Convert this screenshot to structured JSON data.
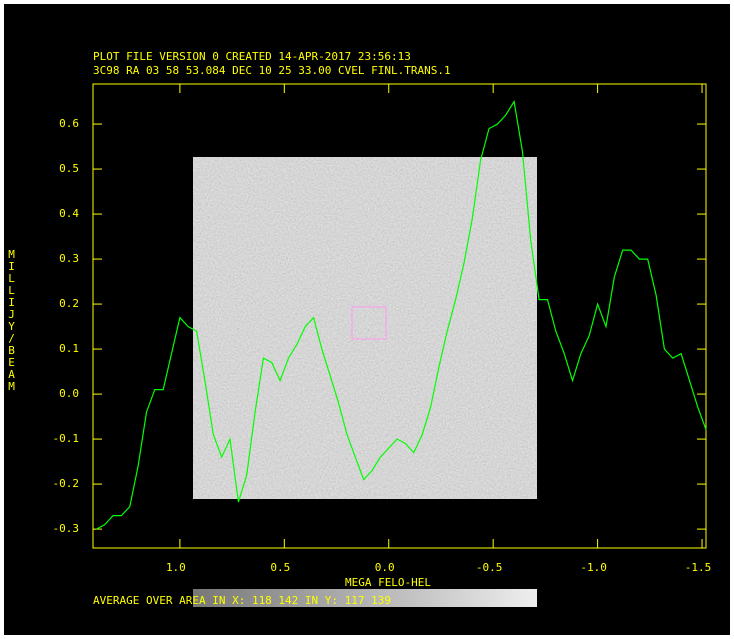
{
  "chart_data": {
    "type": "line",
    "title": "PLOT FILE VERSION 0  CREATED 14-APR-2017 23:56:13",
    "subtitle": "3C98  RA 03 58 53.084  DEC 10 25 33.00  CVEL FINL.TRANS.1",
    "x_label": "MEGA FELO-HEL",
    "y_label": "MILLIJY/BEAM",
    "annotations": [
      "AVERAGE OVER AREA IN X:  118  142   IN Y:  117  139"
    ],
    "x": [
      1.4,
      1.36,
      1.32,
      1.28,
      1.24,
      1.2,
      1.16,
      1.12,
      1.08,
      1.04,
      1.0,
      0.96,
      0.92,
      0.88,
      0.84,
      0.8,
      0.76,
      0.72,
      0.68,
      0.64,
      0.6,
      0.56,
      0.52,
      0.48,
      0.44,
      0.4,
      0.36,
      0.32,
      0.28,
      0.24,
      0.2,
      0.16,
      0.12,
      0.08,
      0.04,
      0.0,
      -0.04,
      -0.08,
      -0.12,
      -0.16,
      -0.2,
      -0.24,
      -0.28,
      -0.32,
      -0.36,
      -0.4,
      -0.44,
      -0.48,
      -0.52,
      -0.56,
      -0.6,
      -0.64,
      -0.68,
      -0.72,
      -0.76,
      -0.8,
      -0.84,
      -0.88,
      -0.92,
      -0.96,
      -1.0,
      -1.04,
      -1.08,
      -1.12,
      -1.16,
      -1.2,
      -1.24,
      -1.28,
      -1.32,
      -1.36,
      -1.4,
      -1.44,
      -1.48,
      -1.52
    ],
    "series": [
      {
        "color": "#00ff00",
        "values": [
          -0.3,
          -0.29,
          -0.27,
          -0.27,
          -0.25,
          -0.16,
          -0.04,
          0.01,
          0.01,
          0.09,
          0.17,
          0.15,
          0.14,
          0.03,
          -0.09,
          -0.14,
          -0.1,
          -0.24,
          -0.18,
          -0.04,
          0.08,
          0.07,
          0.03,
          0.08,
          0.11,
          0.15,
          0.17,
          0.1,
          0.04,
          -0.02,
          -0.09,
          -0.14,
          -0.19,
          -0.17,
          -0.14,
          -0.12,
          -0.1,
          -0.11,
          -0.13,
          -0.09,
          -0.03,
          0.06,
          0.14,
          0.21,
          0.29,
          0.39,
          0.52,
          0.59,
          0.6,
          0.62,
          0.65,
          0.54,
          0.34,
          0.21,
          0.21,
          0.14,
          0.09,
          0.03,
          0.09,
          0.13,
          0.2,
          0.15,
          0.26,
          0.32,
          0.32,
          0.3,
          0.3,
          0.22,
          0.1,
          0.08,
          0.09,
          0.03,
          -0.03,
          -0.08
        ]
      }
    ],
    "xlim": [
      1.416,
      -1.519
    ],
    "xticks": [
      {
        "value": 1.0,
        "label": "1.0"
      },
      0.5,
      {
        "value": 0.0,
        "label": "0.0"
      },
      -0.5,
      {
        "value": -1.0,
        "label": "-1.0"
      },
      -1.5
    ],
    "ylim": [
      -0.342,
      0.689
    ],
    "yticks": [
      -0.3,
      -0.2,
      -0.1,
      {
        "value": 0.0,
        "label": "0.0"
      },
      0.1,
      0.2,
      0.3,
      0.4,
      0.5,
      0.6
    ],
    "frame_color": "#ffff00"
  }
}
